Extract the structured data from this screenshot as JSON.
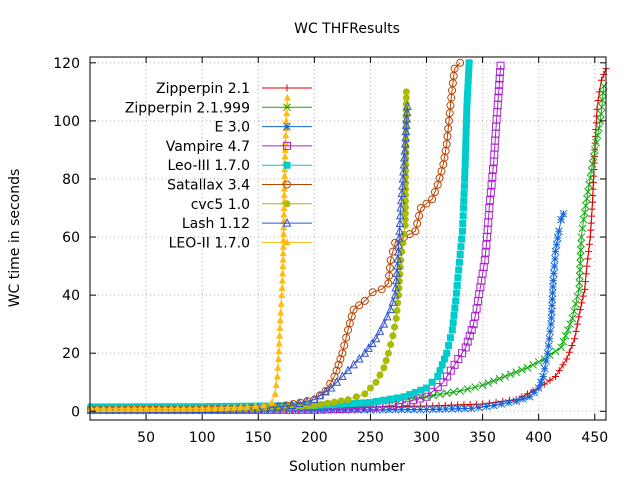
{
  "chart_data": {
    "type": "line",
    "title": "WC THFResults",
    "xlabel": "Solution number",
    "ylabel": "WC time in seconds",
    "xlim": [
      0,
      460
    ],
    "ylim": [
      -3,
      122
    ],
    "x_ticks": [
      50,
      100,
      150,
      200,
      250,
      300,
      350,
      400,
      450
    ],
    "y_ticks": [
      0,
      20,
      40,
      60,
      80,
      100,
      120
    ],
    "grid": true,
    "legend_position": "top-left",
    "series": [
      {
        "name": "Zipperpin 2.1",
        "color": "#dd0000",
        "marker": "plus",
        "points": [
          [
            1,
            0.6
          ],
          [
            100,
            0.8
          ],
          [
            200,
            1.2
          ],
          [
            300,
            1.8
          ],
          [
            350,
            2.5
          ],
          [
            380,
            4
          ],
          [
            400,
            8
          ],
          [
            415,
            12
          ],
          [
            425,
            18
          ],
          [
            432,
            25
          ],
          [
            437,
            35
          ],
          [
            441,
            42
          ],
          [
            443,
            50
          ],
          [
            446,
            60
          ],
          [
            448,
            72
          ],
          [
            450,
            90
          ],
          [
            452,
            104
          ],
          [
            454,
            110
          ],
          [
            456,
            114
          ],
          [
            458,
            116
          ],
          [
            460,
            118
          ]
        ]
      },
      {
        "name": "Zipperpin 2.1.999",
        "color": "#11aa11",
        "marker": "x",
        "points": [
          [
            1,
            0.5
          ],
          [
            100,
            0.7
          ],
          [
            150,
            0.9
          ],
          [
            200,
            1.5
          ],
          [
            250,
            3
          ],
          [
            300,
            5
          ],
          [
            330,
            7
          ],
          [
            350,
            9
          ],
          [
            370,
            12
          ],
          [
            390,
            15
          ],
          [
            405,
            18
          ],
          [
            420,
            22
          ],
          [
            430,
            32
          ],
          [
            436,
            42
          ],
          [
            438,
            60
          ],
          [
            440,
            66
          ],
          [
            445,
            78
          ],
          [
            450,
            90
          ],
          [
            455,
            100
          ],
          [
            458,
            112
          ]
        ]
      },
      {
        "name": "E 3.0",
        "color": "#1166dd",
        "marker": "star",
        "points": [
          [
            1,
            0.3
          ],
          [
            100,
            0.3
          ],
          [
            200,
            0.4
          ],
          [
            250,
            0.5
          ],
          [
            300,
            0.6
          ],
          [
            340,
            1
          ],
          [
            360,
            2
          ],
          [
            380,
            3.5
          ],
          [
            392,
            5
          ],
          [
            400,
            8
          ],
          [
            404,
            12
          ],
          [
            408,
            20
          ],
          [
            411,
            30
          ],
          [
            413,
            45
          ],
          [
            415,
            55
          ],
          [
            418,
            62
          ],
          [
            420,
            66
          ],
          [
            422,
            68
          ]
        ]
      },
      {
        "name": "Vampire 4.7",
        "color": "#aa22cc",
        "marker": "square",
        "points": [
          [
            1,
            0.5
          ],
          [
            100,
            0.5
          ],
          [
            200,
            0.5
          ],
          [
            240,
            1
          ],
          [
            270,
            2
          ],
          [
            300,
            5
          ],
          [
            315,
            10
          ],
          [
            325,
            16
          ],
          [
            335,
            22
          ],
          [
            342,
            30
          ],
          [
            346,
            38
          ],
          [
            349,
            45
          ],
          [
            352,
            52
          ],
          [
            354,
            60
          ],
          [
            356,
            70
          ],
          [
            358,
            78
          ],
          [
            360,
            86
          ],
          [
            362,
            98
          ],
          [
            364,
            108
          ],
          [
            366,
            119
          ]
        ]
      },
      {
        "name": "Leo-III 1.7.0",
        "color": "#00cccc",
        "marker": "filled-square",
        "points": [
          [
            1,
            1.5
          ],
          [
            100,
            1.6
          ],
          [
            200,
            2
          ],
          [
            250,
            3
          ],
          [
            280,
            5
          ],
          [
            300,
            8
          ],
          [
            310,
            12
          ],
          [
            318,
            20
          ],
          [
            323,
            28
          ],
          [
            326,
            38
          ],
          [
            328,
            46
          ],
          [
            330,
            54
          ],
          [
            332,
            62
          ],
          [
            333,
            70
          ],
          [
            334,
            80
          ],
          [
            335,
            92
          ],
          [
            336,
            105
          ],
          [
            338,
            120
          ]
        ]
      },
      {
        "name": "Satallax 3.4",
        "color": "#bb4400",
        "marker": "circle",
        "points": [
          [
            1,
            0.6
          ],
          [
            100,
            0.7
          ],
          [
            150,
            1
          ],
          [
            175,
            2
          ],
          [
            200,
            4
          ],
          [
            210,
            7
          ],
          [
            218,
            12
          ],
          [
            225,
            20
          ],
          [
            230,
            28
          ],
          [
            235,
            35
          ],
          [
            245,
            38
          ],
          [
            252,
            41
          ],
          [
            260,
            42
          ],
          [
            266,
            44
          ],
          [
            268,
            52
          ],
          [
            272,
            58
          ],
          [
            280,
            60
          ],
          [
            290,
            62
          ],
          [
            295,
            70
          ],
          [
            305,
            73
          ],
          [
            310,
            78
          ],
          [
            315,
            85
          ],
          [
            318,
            92
          ],
          [
            320,
            100
          ],
          [
            322,
            108
          ],
          [
            325,
            118
          ],
          [
            330,
            120
          ]
        ]
      },
      {
        "name": "cvc5 1.0",
        "color": "#aabb00",
        "marker": "filled-circle",
        "points": [
          [
            1,
            0.4
          ],
          [
            100,
            0.5
          ],
          [
            150,
            0.8
          ],
          [
            200,
            2
          ],
          [
            230,
            4
          ],
          [
            245,
            6
          ],
          [
            255,
            10
          ],
          [
            262,
            15
          ],
          [
            266,
            20
          ],
          [
            270,
            26
          ],
          [
            273,
            32
          ],
          [
            275,
            40
          ],
          [
            277,
            52
          ],
          [
            279,
            58
          ],
          [
            281,
            64
          ],
          [
            282,
            110
          ]
        ]
      },
      {
        "name": "Lash 1.12",
        "color": "#3355cc",
        "marker": "triangle",
        "points": [
          [
            1,
            0.5
          ],
          [
            100,
            0.6
          ],
          [
            150,
            0.8
          ],
          [
            180,
            2
          ],
          [
            200,
            4
          ],
          [
            215,
            8
          ],
          [
            225,
            12
          ],
          [
            235,
            16
          ],
          [
            245,
            20
          ],
          [
            255,
            25
          ],
          [
            262,
            30
          ],
          [
            268,
            35
          ],
          [
            272,
            40
          ],
          [
            274,
            50
          ],
          [
            276,
            62
          ],
          [
            277,
            70
          ],
          [
            279,
            80
          ],
          [
            281,
            92
          ],
          [
            283,
            105
          ]
        ]
      },
      {
        "name": "LEO-II 1.7.0",
        "color": "#ffbb11",
        "marker": "filled-triangle",
        "points": [
          [
            1,
            0.8
          ],
          [
            100,
            1
          ],
          [
            140,
            1.5
          ],
          [
            155,
            2
          ],
          [
            162,
            3
          ],
          [
            165,
            6
          ],
          [
            167,
            12
          ],
          [
            168,
            18
          ],
          [
            169,
            26
          ],
          [
            170,
            34
          ],
          [
            171,
            40
          ],
          [
            172,
            50
          ],
          [
            173,
            70
          ],
          [
            174,
            90
          ],
          [
            175,
            100
          ],
          [
            176,
            108
          ]
        ]
      }
    ]
  }
}
